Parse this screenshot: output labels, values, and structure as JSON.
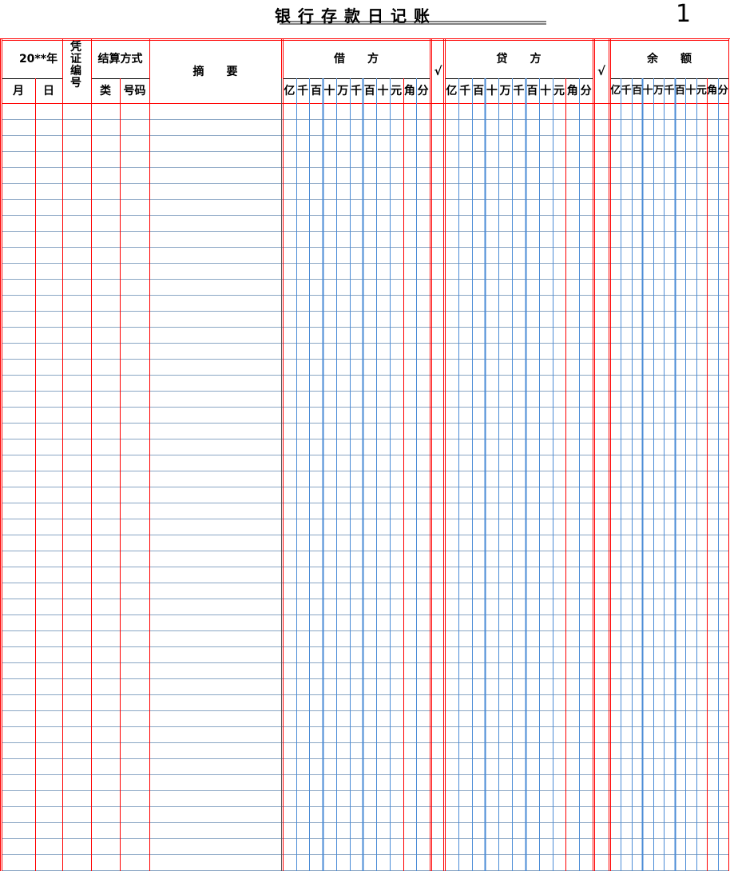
{
  "title": "银行存款日记账",
  "page_number": "1",
  "header": {
    "year": "20**年",
    "month": "月",
    "day": "日",
    "voucher_no": "凭证编号",
    "settlement": "结算方式",
    "settlement_type": "类",
    "settlement_number": "号码",
    "summary": "摘　　要",
    "debit": "借　　方",
    "credit": "贷　　方",
    "balance": "余　　额",
    "check_mark": "√",
    "digits": [
      "亿",
      "千",
      "百",
      "十",
      "万",
      "千",
      "百",
      "十",
      "元",
      "角",
      "分"
    ]
  },
  "colors": {
    "red": "#ff0000",
    "blue": "#4a8bd6",
    "row": "#8aa6c4"
  }
}
